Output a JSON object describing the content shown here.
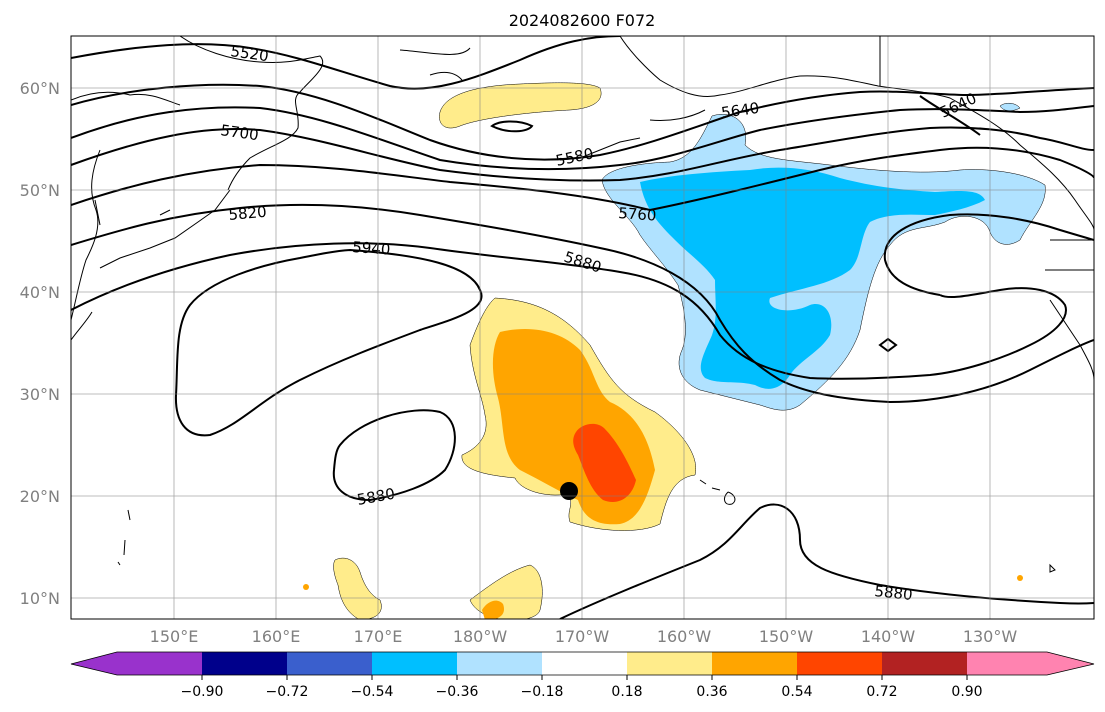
{
  "title": "2024082600 F072",
  "lat_labels": [
    "60°N",
    "50°N",
    "40°N",
    "30°N",
    "20°N",
    "10°N"
  ],
  "lon_labels": [
    "150°E",
    "160°E",
    "170°E",
    "180°W",
    "170°W",
    "160°W",
    "150°W",
    "140°W",
    "130°W"
  ],
  "contour_labels": [
    "5520",
    "5580",
    "5640",
    "5640",
    "5700",
    "5760",
    "5820",
    "5880",
    "5880",
    "5880",
    "5940"
  ],
  "colorbar": {
    "tick_labels": [
      "−0.90",
      "−0.72",
      "−0.54",
      "−0.36",
      "−0.18",
      "0.18",
      "0.36",
      "0.54",
      "0.72",
      "0.90"
    ],
    "colors": [
      "#9932cc",
      "#00008b",
      "#3a5fcd",
      "#00bfff",
      "#b0e2ff",
      "#ffffff",
      "#ffec8b",
      "#ffa500",
      "#ff4500",
      "#b22222",
      "#ff83b0"
    ]
  }
}
